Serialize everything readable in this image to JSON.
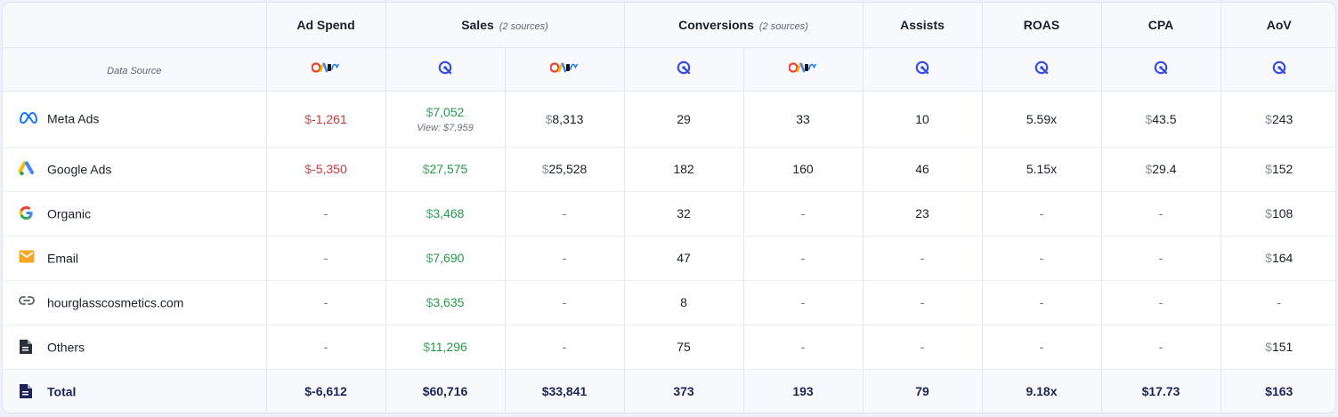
{
  "header": {
    "ad_spend": "Ad Spend",
    "sales": "Sales",
    "sales_sub": "(2 sources)",
    "conversions": "Conversions",
    "conversions_sub": "(2 sources)",
    "assists": "Assists",
    "roas": "ROAS",
    "cpa": "CPA",
    "aov": "AoV",
    "data_source": "Data Source"
  },
  "source_icons": [
    "platform-logos-icon",
    "tracker-icon",
    "platform-logos-icon",
    "tracker-icon",
    "platform-logos-icon",
    "tracker-icon",
    "tracker-icon",
    "tracker-icon",
    "tracker-icon"
  ],
  "colors": {
    "negative": "#c9343c",
    "positive": "#23994a",
    "total_text": "#1e2358",
    "tracker_blue": "#3b4ce0"
  },
  "rows": [
    {
      "channel": "Meta Ads",
      "icon": "meta-icon",
      "ad_spend": "-1,261",
      "sales_px": "7,052",
      "sales_view": "View: $7,959",
      "sales_platform": "8,313",
      "conv_px": "29",
      "conv_platform": "33",
      "assists": "10",
      "roas": "5.59x",
      "cpa": "43.5",
      "aov": "243"
    },
    {
      "channel": "Google Ads",
      "icon": "google-ads-icon",
      "ad_spend": "-5,350",
      "sales_px": "27,575",
      "sales_platform": "25,528",
      "conv_px": "182",
      "conv_platform": "160",
      "assists": "46",
      "roas": "5.15x",
      "cpa": "29.4",
      "aov": "152"
    },
    {
      "channel": "Organic",
      "icon": "google-icon",
      "ad_spend": "-",
      "sales_px": "3,468",
      "sales_platform": "-",
      "conv_px": "32",
      "conv_platform": "-",
      "assists": "23",
      "roas": "-",
      "cpa": "-",
      "aov": "108"
    },
    {
      "channel": "Email",
      "icon": "email-icon",
      "ad_spend": "-",
      "sales_px": "7,690",
      "sales_platform": "-",
      "conv_px": "47",
      "conv_platform": "-",
      "assists": "-",
      "roas": "-",
      "cpa": "-",
      "aov": "164"
    },
    {
      "channel": "hourglasscosmetics.com",
      "icon": "link-icon",
      "ad_spend": "-",
      "sales_px": "3,635",
      "sales_platform": "-",
      "conv_px": "8",
      "conv_platform": "-",
      "assists": "-",
      "roas": "-",
      "cpa": "-",
      "aov": "-"
    },
    {
      "channel": "Others",
      "icon": "document-icon",
      "ad_spend": "-",
      "sales_px": "11,296",
      "sales_platform": "-",
      "conv_px": "75",
      "conv_platform": "-",
      "assists": "-",
      "roas": "-",
      "cpa": "-",
      "aov": "151"
    }
  ],
  "total": {
    "label": "Total",
    "ad_spend": "$-6,612",
    "sales_px": "$60,716",
    "sales_platform": "$33,841",
    "conv_px": "373",
    "conv_platform": "193",
    "assists": "79",
    "roas": "9.18x",
    "cpa": "$17.73",
    "aov": "$163"
  }
}
